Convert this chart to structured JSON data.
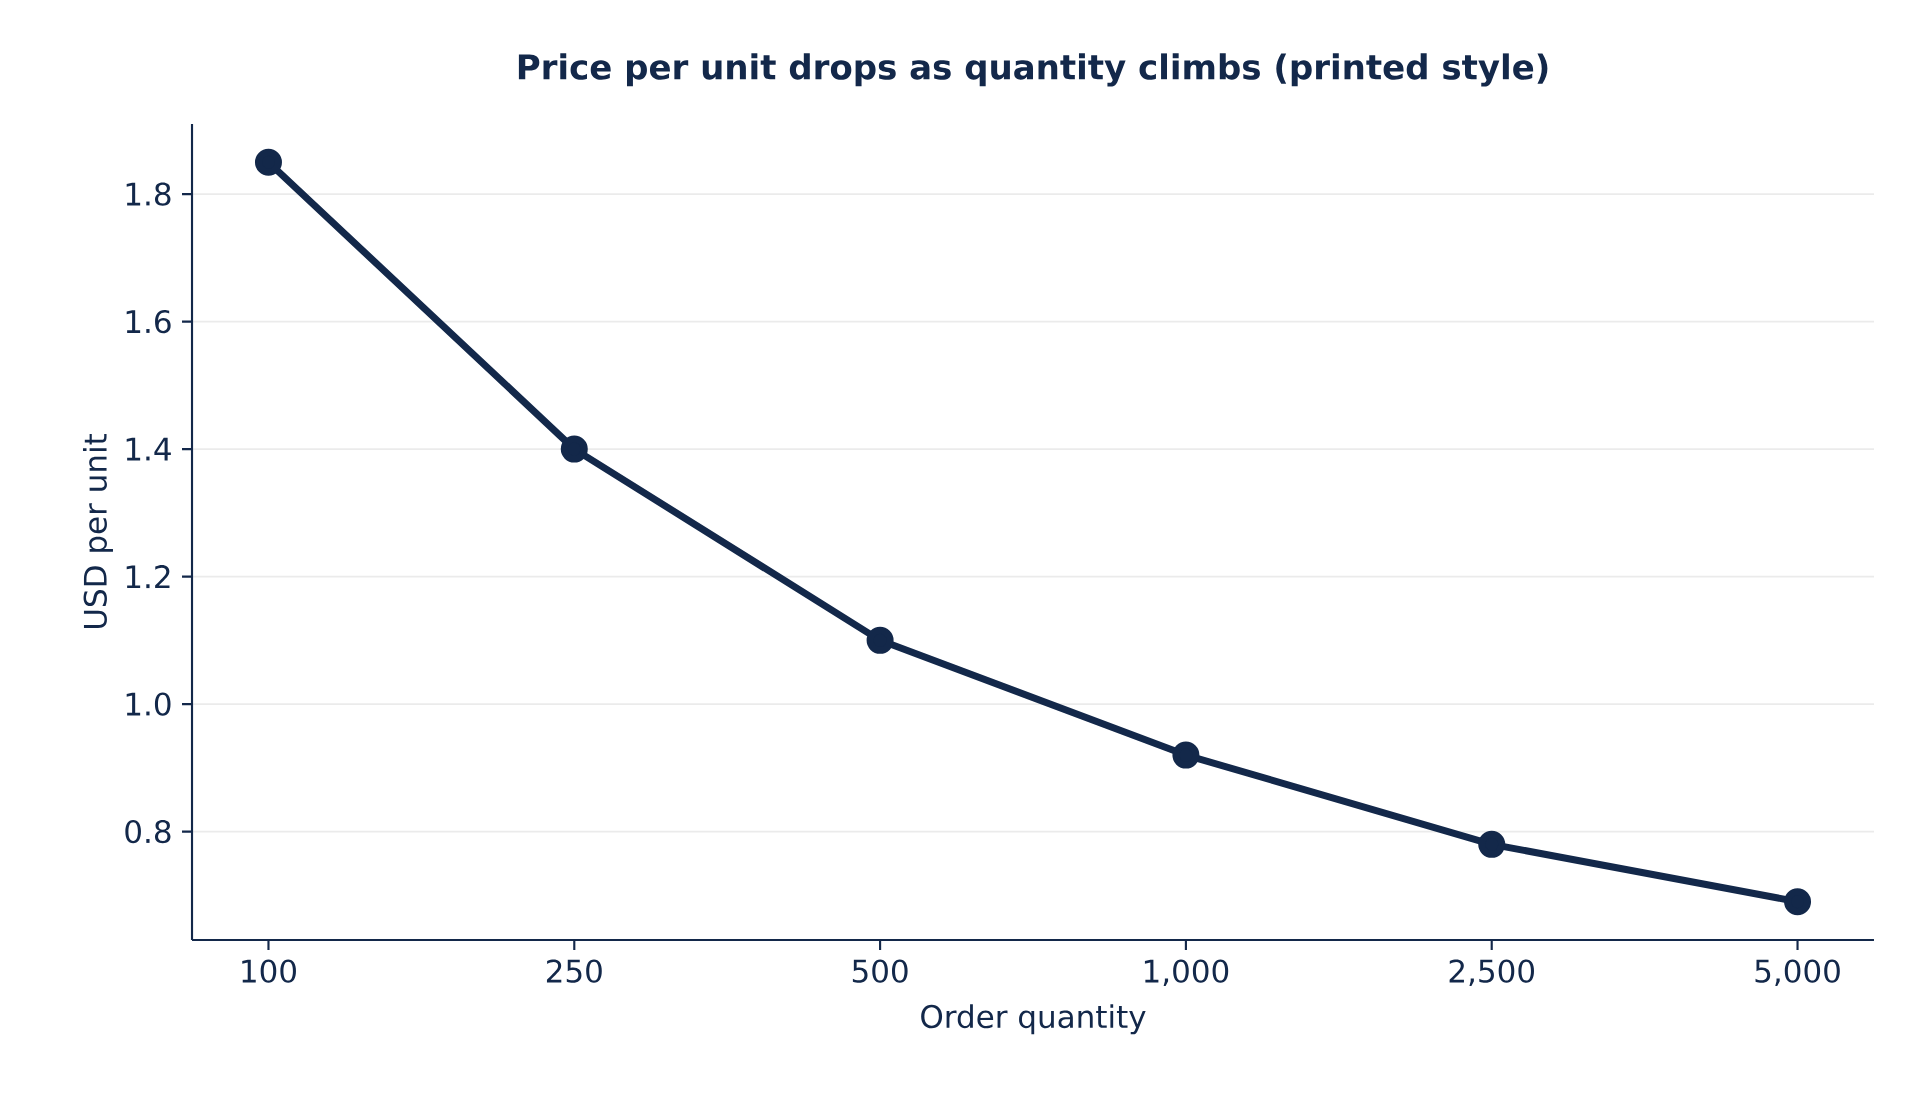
{
  "chart_data": {
    "type": "line",
    "title": "Price per unit drops as quantity climbs (printed style)",
    "xlabel": "Order quantity",
    "ylabel": "USD per unit",
    "categories": [
      "100",
      "250",
      "500",
      "1,000",
      "2,500",
      "5,000"
    ],
    "series": [
      {
        "color": "#13284a",
        "values": [
          1.85,
          1.4,
          1.1,
          0.92,
          0.78,
          0.69
        ]
      }
    ],
    "ylim": [
      0.63,
      1.91
    ],
    "yticks": [
      {
        "value": 0.8,
        "label": "0.8"
      },
      {
        "value": 1.0,
        "label": "1.0"
      },
      {
        "value": 1.2,
        "label": "1.2"
      },
      {
        "value": 1.4,
        "label": "1.4"
      },
      {
        "value": 1.6,
        "label": "1.6"
      },
      {
        "value": 1.8,
        "label": "1.8"
      }
    ],
    "grid": "y",
    "marker": "circle",
    "line_style": "solid"
  }
}
